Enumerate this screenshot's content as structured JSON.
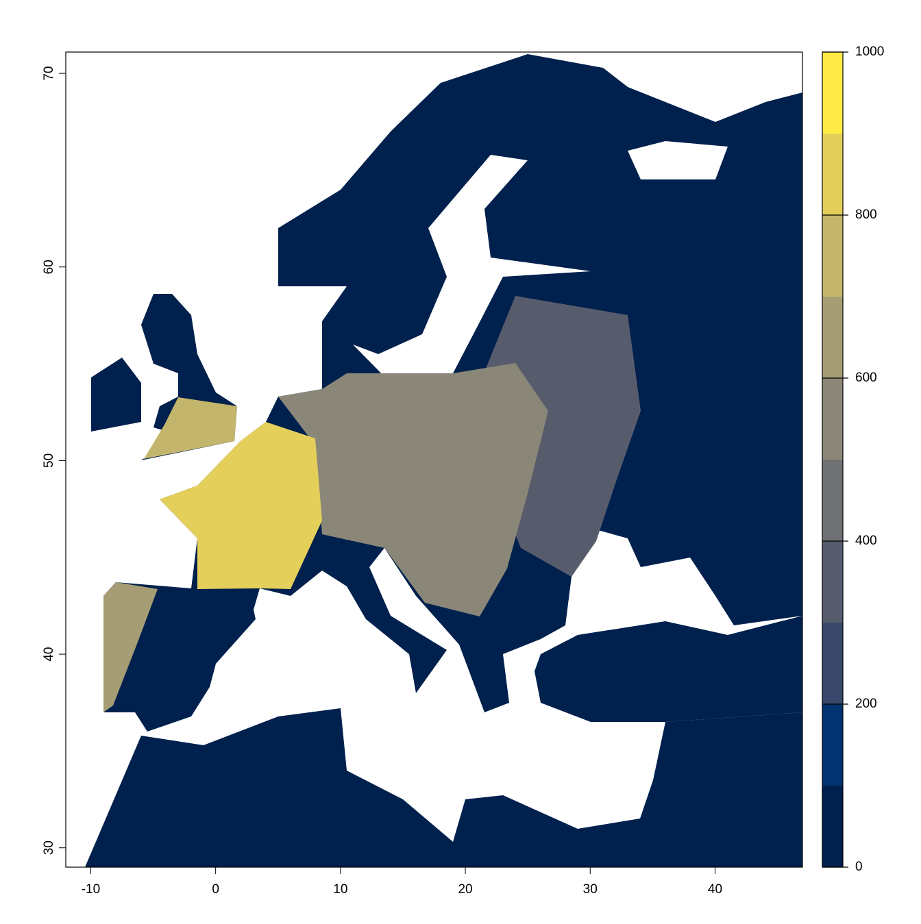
{
  "chart_data": {
    "type": "raster",
    "xlim": [
      -12,
      47
    ],
    "ylim": [
      29,
      71.1
    ],
    "xticks": [
      -10,
      0,
      10,
      20,
      30,
      40
    ],
    "yticks": [
      30,
      40,
      50,
      60,
      70
    ],
    "colorbar": {
      "breaks": [
        0,
        100,
        200,
        300,
        400,
        500,
        600,
        700,
        800,
        900,
        1000
      ],
      "colors": [
        "#00204d",
        "#00336f",
        "#39486b",
        "#575c6d",
        "#707173",
        "#8a8779",
        "#a69d75",
        "#c4b56c",
        "#e4cf5b",
        "#ffea46"
      ],
      "lim": [
        0,
        1000
      ],
      "ticks": [
        0,
        200,
        400,
        600,
        800,
        1000
      ]
    }
  }
}
